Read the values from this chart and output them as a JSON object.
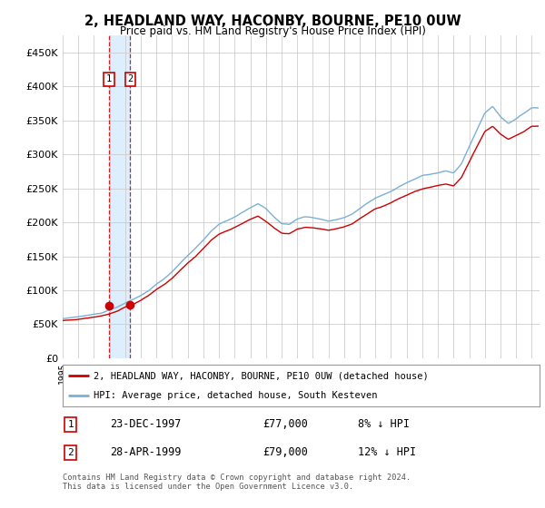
{
  "title": "2, HEADLAND WAY, HACONBY, BOURNE, PE10 0UW",
  "subtitle": "Price paid vs. HM Land Registry's House Price Index (HPI)",
  "legend_label_red": "2, HEADLAND WAY, HACONBY, BOURNE, PE10 0UW (detached house)",
  "legend_label_blue": "HPI: Average price, detached house, South Kesteven",
  "footer": "Contains HM Land Registry data © Crown copyright and database right 2024.\nThis data is licensed under the Open Government Licence v3.0.",
  "transaction1_date": "23-DEC-1997",
  "transaction1_price": "£77,000",
  "transaction1_hpi": "8% ↓ HPI",
  "transaction2_date": "28-APR-1999",
  "transaction2_price": "£79,000",
  "transaction2_hpi": "12% ↓ HPI",
  "sale1_x": 1997.97,
  "sale1_y": 77000,
  "sale2_x": 1999.32,
  "sale2_y": 79000,
  "ylim": [
    0,
    475000
  ],
  "xlim_start": 1995.0,
  "xlim_end": 2025.5,
  "yticks": [
    0,
    50000,
    100000,
    150000,
    200000,
    250000,
    300000,
    350000,
    400000,
    450000
  ],
  "ytick_labels": [
    "£0",
    "£50K",
    "£100K",
    "£150K",
    "£200K",
    "£250K",
    "£300K",
    "£350K",
    "£400K",
    "£450K"
  ],
  "background_color": "#ffffff",
  "grid_color": "#cccccc",
  "red_color": "#cc0000",
  "blue_color": "#7ab0d4",
  "shade_color": "#ddeeff",
  "vline_color": "#cc0000",
  "hpi_years": [
    1995,
    1995.5,
    1996,
    1996.5,
    1997,
    1997.5,
    1998,
    1998.5,
    1999,
    1999.5,
    2000,
    2000.5,
    2001,
    2001.5,
    2002,
    2002.5,
    2003,
    2003.5,
    2004,
    2004.5,
    2005,
    2005.5,
    2006,
    2006.5,
    2007,
    2007.5,
    2008,
    2008.5,
    2009,
    2009.5,
    2010,
    2010.5,
    2011,
    2011.5,
    2012,
    2012.5,
    2013,
    2013.5,
    2014,
    2014.5,
    2015,
    2015.5,
    2016,
    2016.5,
    2017,
    2017.5,
    2018,
    2018.5,
    2019,
    2019.5,
    2020,
    2020.5,
    2021,
    2021.5,
    2022,
    2022.5,
    2023,
    2023.5,
    2024,
    2024.5,
    2025
  ],
  "hpi_vals": [
    58000,
    59000,
    61000,
    63000,
    65000,
    67000,
    72000,
    76000,
    82000,
    87000,
    93000,
    100000,
    110000,
    118000,
    128000,
    140000,
    152000,
    163000,
    175000,
    188000,
    198000,
    203000,
    208000,
    215000,
    222000,
    228000,
    220000,
    208000,
    198000,
    197000,
    205000,
    208000,
    207000,
    205000,
    202000,
    204000,
    207000,
    212000,
    220000,
    228000,
    235000,
    240000,
    245000,
    252000,
    258000,
    263000,
    268000,
    270000,
    272000,
    275000,
    272000,
    285000,
    310000,
    335000,
    360000,
    370000,
    355000,
    345000,
    352000,
    360000,
    368000
  ],
  "red_vals": [
    55000,
    56000,
    57000,
    59000,
    61000,
    63000,
    66000,
    70000,
    76000,
    80000,
    86000,
    93000,
    102000,
    109000,
    118000,
    129000,
    140000,
    150000,
    162000,
    174000,
    183000,
    188000,
    193000,
    199000,
    205000,
    210000,
    202000,
    193000,
    185000,
    184000,
    191000,
    194000,
    193000,
    191000,
    189000,
    191000,
    194000,
    198000,
    206000,
    213000,
    220000,
    224000,
    229000,
    235000,
    240000,
    245000,
    249000,
    251000,
    253000,
    255000,
    252000,
    264000,
    287000,
    310000,
    332000,
    340000,
    328000,
    320000,
    326000,
    332000,
    340000
  ]
}
